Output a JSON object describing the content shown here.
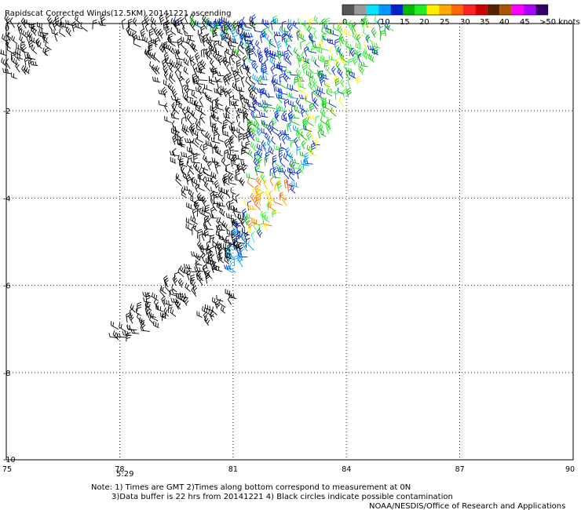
{
  "title": "Rapidscat Corrected Winds(12.5KM) 20141221 ascending",
  "legend": {
    "unit_label": ">50 knots",
    "tick_labels": [
      "0",
      "5",
      "10",
      "15",
      "20",
      "25",
      "30",
      "35",
      "40",
      "45"
    ],
    "colors": [
      "#555555",
      "#999999",
      "#00e5ff",
      "#0099ff",
      "#0022cc",
      "#00bb00",
      "#22ee22",
      "#ffee00",
      "#ffaa00",
      "#ff6600",
      "#ff2222",
      "#cc0000",
      "#552200",
      "#aa5500",
      "#ff00ff",
      "#aa00ff",
      "#330066"
    ]
  },
  "map": {
    "x_ticks": [
      "75",
      "78",
      "81",
      "84",
      "87",
      "90"
    ],
    "y_ticks": [
      "0",
      "-2",
      "-4",
      "-6",
      "-8",
      "-10"
    ],
    "x_range": [
      75,
      90
    ],
    "y_range": [
      -10,
      0
    ],
    "pass_time": "5:29",
    "pass_time_color": "#9900cc"
  },
  "notes": {
    "line1": "Note: 1) Times are GMT 2)Times along bottom correspond to measurement at 0N",
    "line2": "3)Data buffer is 22 hrs from 20141221 4) Black circles indicate possible contamination",
    "credit": "NOAA/NESDIS/Office of Research and Applications"
  }
}
